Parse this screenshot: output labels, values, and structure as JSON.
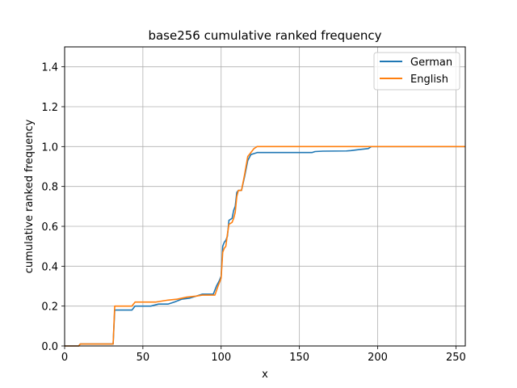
{
  "chart_data": {
    "type": "line",
    "title": "base256 cumulative ranked frequency",
    "xlabel": "x",
    "ylabel": "cumulative ranked frequency",
    "xlim": [
      0,
      256
    ],
    "ylim": [
      0,
      1.5
    ],
    "xticks": [
      0,
      50,
      100,
      150,
      200,
      250
    ],
    "yticks": [
      0.0,
      0.2,
      0.4,
      0.6,
      0.8,
      1.0,
      1.2,
      1.4
    ],
    "ytick_labels": [
      "0.0",
      "0.2",
      "0.4",
      "0.6",
      "0.8",
      "1.0",
      "1.2",
      "1.4"
    ],
    "grid": true,
    "legend_position": "top-right",
    "series": [
      {
        "name": "German",
        "color": "#1f77b4",
        "points": [
          [
            0,
            0.0
          ],
          [
            9,
            0.0
          ],
          [
            10,
            0.01
          ],
          [
            31,
            0.01
          ],
          [
            32,
            0.18
          ],
          [
            43,
            0.18
          ],
          [
            45,
            0.2
          ],
          [
            55,
            0.2
          ],
          [
            60,
            0.21
          ],
          [
            66,
            0.21
          ],
          [
            70,
            0.22
          ],
          [
            75,
            0.235
          ],
          [
            80,
            0.24
          ],
          [
            84,
            0.25
          ],
          [
            88,
            0.26
          ],
          [
            95,
            0.26
          ],
          [
            97,
            0.3
          ],
          [
            99,
            0.33
          ],
          [
            100,
            0.35
          ],
          [
            101,
            0.5
          ],
          [
            102,
            0.52
          ],
          [
            103,
            0.53
          ],
          [
            104,
            0.55
          ],
          [
            105,
            0.63
          ],
          [
            107,
            0.64
          ],
          [
            108,
            0.68
          ],
          [
            109,
            0.7
          ],
          [
            110,
            0.77
          ],
          [
            111,
            0.78
          ],
          [
            113,
            0.78
          ],
          [
            115,
            0.85
          ],
          [
            117,
            0.93
          ],
          [
            119,
            0.96
          ],
          [
            121,
            0.965
          ],
          [
            123,
            0.97
          ],
          [
            158,
            0.97
          ],
          [
            160,
            0.975
          ],
          [
            165,
            0.977
          ],
          [
            180,
            0.978
          ],
          [
            183,
            0.98
          ],
          [
            188,
            0.985
          ],
          [
            194,
            0.99
          ],
          [
            196,
            1.0
          ],
          [
            256,
            1.0
          ]
        ]
      },
      {
        "name": "English",
        "color": "#ff7f0e",
        "points": [
          [
            0,
            0.0
          ],
          [
            9,
            0.0
          ],
          [
            10,
            0.01
          ],
          [
            31,
            0.01
          ],
          [
            32,
            0.2
          ],
          [
            43,
            0.2
          ],
          [
            45,
            0.22
          ],
          [
            58,
            0.22
          ],
          [
            62,
            0.225
          ],
          [
            66,
            0.23
          ],
          [
            72,
            0.235
          ],
          [
            78,
            0.245
          ],
          [
            84,
            0.25
          ],
          [
            88,
            0.255
          ],
          [
            96,
            0.255
          ],
          [
            98,
            0.3
          ],
          [
            99,
            0.32
          ],
          [
            100,
            0.34
          ],
          [
            101,
            0.47
          ],
          [
            102,
            0.49
          ],
          [
            103,
            0.5
          ],
          [
            104,
            0.56
          ],
          [
            105,
            0.61
          ],
          [
            107,
            0.62
          ],
          [
            108,
            0.64
          ],
          [
            109,
            0.67
          ],
          [
            110,
            0.75
          ],
          [
            111,
            0.78
          ],
          [
            113,
            0.78
          ],
          [
            115,
            0.86
          ],
          [
            117,
            0.95
          ],
          [
            119,
            0.97
          ],
          [
            121,
            0.99
          ],
          [
            123,
            1.0
          ],
          [
            256,
            1.0
          ]
        ]
      }
    ]
  }
}
